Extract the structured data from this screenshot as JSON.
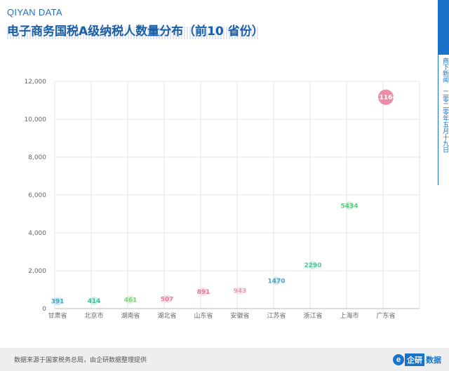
{
  "brand": "QIYAN DATA",
  "title": "电子商务国税A级纳税人数量分布（前10 省份）",
  "side_note": "商下新闻 二零二零年五月十九日",
  "source": "数据来源于国家税务总局，由企研数据整理提供",
  "logo": {
    "mark": "e",
    "box": "企研",
    "text": "数据"
  },
  "colors": {
    "accent": "#1a73c8",
    "top": "#e57a96"
  },
  "chart_data": {
    "type": "scatter",
    "title": "电子商务国税A级纳税人数量分布（前10 省份）",
    "xlabel": "",
    "ylabel": "",
    "ylim": [
      0,
      12000
    ],
    "yticks": [
      0,
      2000,
      4000,
      6000,
      8000,
      10000,
      12000
    ],
    "ytick_labels": [
      "0",
      "2,000",
      "4,000",
      "6,000",
      "8,000",
      "10,000",
      "12,000"
    ],
    "grid": true,
    "categories": [
      "甘肃省",
      "北京市",
      "湖南省",
      "湖北省",
      "山东省",
      "安徽省",
      "江苏省",
      "浙江省",
      "上海市",
      "广东省"
    ],
    "values": [
      391,
      414,
      461,
      507,
      891,
      943,
      1470,
      2290,
      5434,
      11164
    ],
    "value_labels": [
      "391",
      "414",
      "461",
      "507",
      "891",
      "943",
      "1470",
      "2290",
      "5434",
      "11164"
    ],
    "point_colors": [
      "#3aa9c4",
      "#3fc29a",
      "#7fd37a",
      "#e57a96",
      "#e57a96",
      "#e8a0b4",
      "#4aa8b8",
      "#52c49a",
      "#5cc97a",
      "#e57a96"
    ]
  }
}
